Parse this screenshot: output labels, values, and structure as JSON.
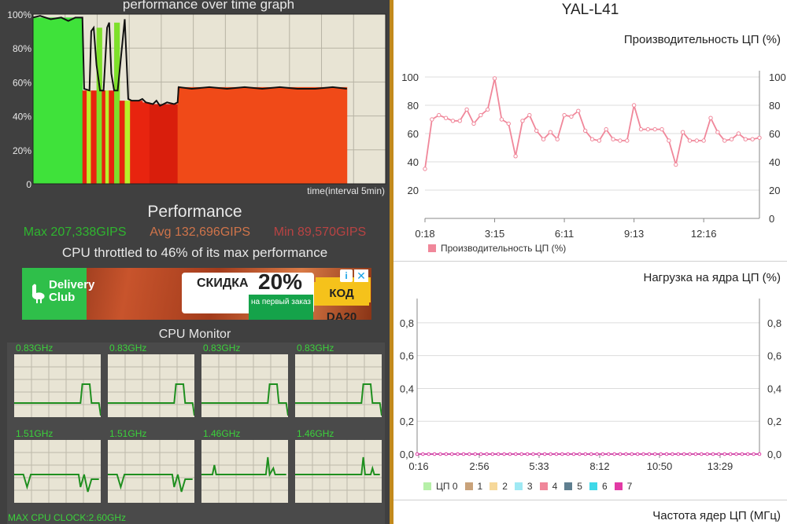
{
  "perf_graph": {
    "title": "performance over time graph",
    "y_ticks": [
      "100%",
      "80%",
      "60%",
      "40%",
      "20%",
      "0"
    ],
    "x_label": "time(interval 5min)"
  },
  "performance": {
    "heading": "Performance",
    "max": "Max 207,338GIPS",
    "avg": "Avg 132,696GIPS",
    "min": "Min 89,570GIPS",
    "throttle": "CPU throttled to 46% of its max performance",
    "colors": {
      "max": "#2fb52f",
      "avg": "#d0744a",
      "min": "#b84343"
    }
  },
  "ad": {
    "brand": "Delivery Club",
    "sale_word": "скидка",
    "sale_pct": "20%",
    "subtext": "на первый заказ",
    "code": "код DA20",
    "info_icon": "info-icon",
    "close_icon": "close-icon"
  },
  "cpu_monitor": {
    "heading": "CPU Monitor",
    "cores": [
      {
        "freq": "0.83GHz"
      },
      {
        "freq": "0.83GHz"
      },
      {
        "freq": "0.83GHz"
      },
      {
        "freq": "0.83GHz"
      },
      {
        "freq": "1.51GHz"
      },
      {
        "freq": "1.51GHz"
      },
      {
        "freq": "1.46GHz"
      },
      {
        "freq": "1.46GHz"
      }
    ],
    "max_clock": "MAX CPU CLOCK:2.60GHz"
  },
  "device_name": "YAL-L41",
  "chart_data": [
    {
      "type": "line",
      "title": "Производительность ЦП (%)",
      "x_tick_labels": [
        "0:18",
        "3:15",
        "6:11",
        "9:13",
        "12:16"
      ],
      "y_ticks": [
        0,
        20,
        40,
        60,
        80,
        100
      ],
      "ylim": [
        0,
        100
      ],
      "series": [
        {
          "name": "Производительность ЦП (%)",
          "color": "#f0879a",
          "values": [
            35,
            70,
            73,
            71,
            69,
            69,
            77,
            67,
            73,
            77,
            99,
            70,
            67,
            44,
            69,
            73,
            62,
            56,
            61,
            56,
            73,
            72,
            76,
            62,
            56,
            55,
            63,
            56,
            55,
            55,
            80,
            63,
            63,
            63,
            63,
            55,
            38,
            61,
            55,
            55,
            55,
            71,
            61,
            55,
            56,
            60,
            56,
            56,
            57
          ]
        }
      ],
      "grid": true
    },
    {
      "type": "line",
      "title": "Нагрузка на ядра ЦП (%)",
      "x_tick_labels": [
        "0:16",
        "2:56",
        "5:33",
        "8:12",
        "10:50",
        "13:29"
      ],
      "y_tick_labels": [
        "0,0",
        "0,2",
        "0,4",
        "0,6",
        "0,8"
      ],
      "ylim": [
        0,
        0.9
      ],
      "legend": [
        {
          "name": "ЦП 0",
          "color": "#b6f0a8"
        },
        {
          "name": "1",
          "color": "#c9a27a"
        },
        {
          "name": "2",
          "color": "#f6d89a"
        },
        {
          "name": "3",
          "color": "#9fe9f4"
        },
        {
          "name": "4",
          "color": "#f0879a"
        },
        {
          "name": "5",
          "color": "#5f7f90"
        },
        {
          "name": "6",
          "color": "#3fd8e8"
        },
        {
          "name": "7",
          "color": "#e23aa5"
        }
      ],
      "series_values": 0.0,
      "grid": true
    },
    {
      "type": "line",
      "title": "Частота ядер ЦП (МГц)"
    }
  ]
}
